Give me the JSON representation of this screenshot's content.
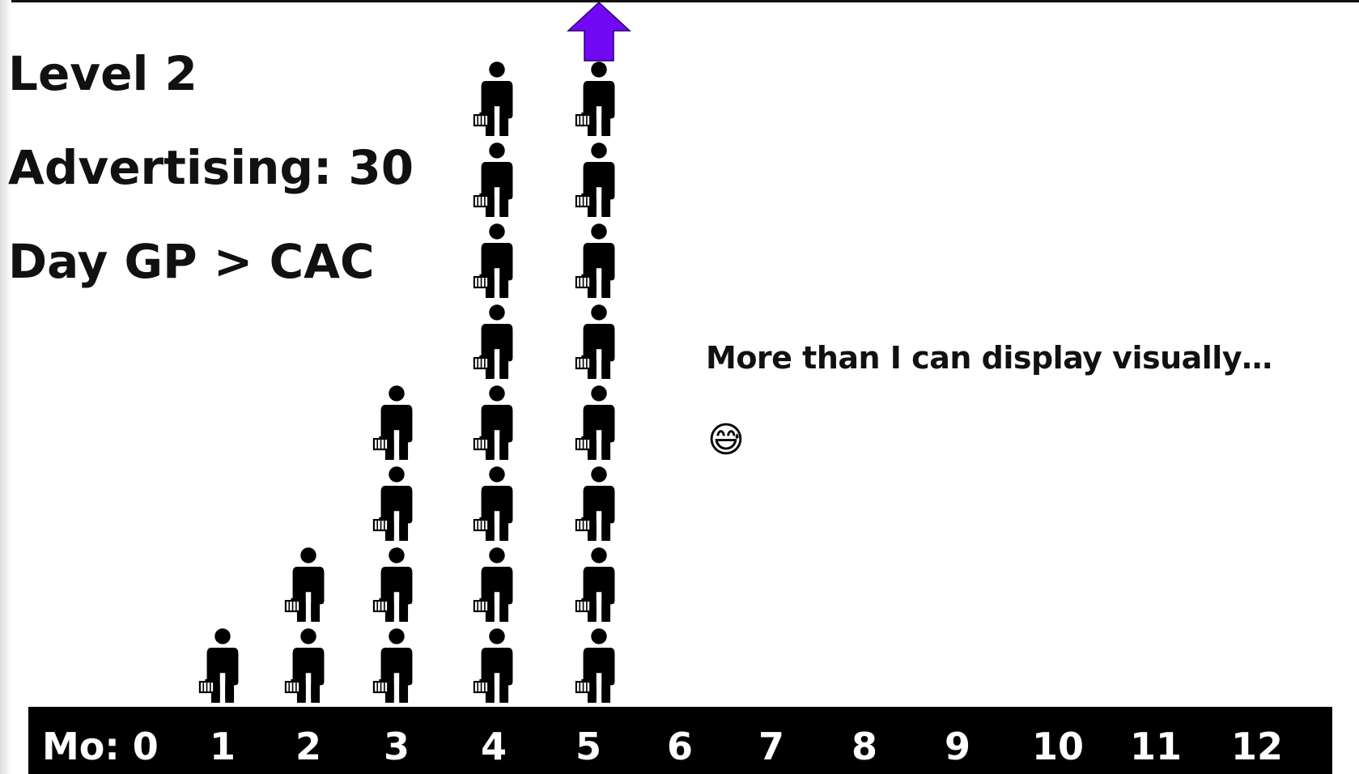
{
  "slide": {
    "title": "Level 2",
    "advertising_label": "Advertising: 30",
    "rule": "Day GP > CAC",
    "annotation": "More than I can display visually…",
    "emoji": "😅"
  },
  "chart_data": {
    "type": "bar",
    "x_prefix": "Mo: ",
    "categories": [
      "0",
      "1",
      "2",
      "3",
      "4",
      "5",
      "6",
      "7",
      "8",
      "9",
      "10",
      "11",
      "12"
    ],
    "values": [
      0,
      1,
      2,
      4,
      8,
      8,
      null,
      null,
      null,
      null,
      null,
      null,
      null
    ],
    "overflow_category": "5",
    "mark_icon": "person-with-basket-icon",
    "overflow_icon": "up-arrow-icon",
    "colors": {
      "axis_bar": "#000000",
      "axis_text": "#ffffff",
      "figure": "#000000",
      "arrow": "#7209f5"
    }
  }
}
